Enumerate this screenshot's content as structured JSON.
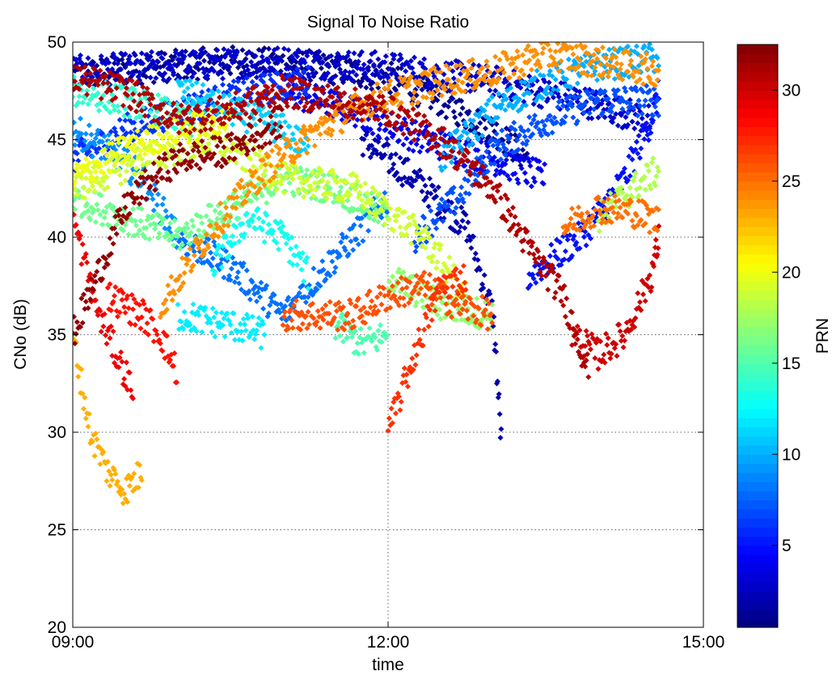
{
  "chart_data": {
    "type": "scatter",
    "title": "Signal To Noise Ratio",
    "xlabel": "time",
    "ylabel": "CNo (dB)",
    "xlim": [
      "09:00",
      "15:00"
    ],
    "ylim": [
      20,
      50
    ],
    "xticks": [
      "09:00",
      "12:00",
      "15:00"
    ],
    "yticks": [
      20,
      25,
      30,
      35,
      40,
      45,
      50
    ],
    "grid": true,
    "colorbar": {
      "label": "PRN",
      "range": [
        0.5,
        32.5
      ],
      "ticks": [
        5,
        10,
        15,
        20,
        25,
        30
      ],
      "colormap": "jet"
    },
    "series": [
      {
        "prn": 1,
        "points": [
          [
            "09:00",
            48.3
          ],
          [
            "09:45",
            48.7
          ],
          [
            "10:30",
            49.0
          ],
          [
            "11:15",
            48.8
          ],
          [
            "12:00",
            48.2
          ],
          [
            "12:30",
            47.0
          ],
          [
            "13:00",
            45.5
          ],
          [
            "13:20",
            44.0
          ]
        ]
      },
      {
        "prn": 2,
        "points": [
          [
            "11:45",
            45.0
          ],
          [
            "12:15",
            43.0
          ],
          [
            "12:45",
            40.5
          ],
          [
            "13:00",
            36.0
          ],
          [
            "13:05",
            29.0
          ]
        ]
      },
      {
        "prn": 3,
        "points": [
          [
            "09:00",
            48.5
          ],
          [
            "10:00",
            48.8
          ],
          [
            "11:00",
            49.0
          ],
          [
            "12:00",
            48.7
          ],
          [
            "13:00",
            48.0
          ],
          [
            "13:50",
            47.0
          ],
          [
            "14:30",
            46.0
          ]
        ]
      },
      {
        "prn": 4,
        "points": [
          [
            "11:00",
            47.5
          ],
          [
            "11:40",
            46.5
          ],
          [
            "12:20",
            45.0
          ],
          [
            "13:00",
            44.0
          ],
          [
            "13:30",
            43.0
          ]
        ]
      },
      {
        "prn": 5,
        "points": [
          [
            "13:20",
            38.0
          ],
          [
            "13:50",
            40.0
          ],
          [
            "14:15",
            43.0
          ],
          [
            "14:30",
            46.0
          ],
          [
            "14:35",
            47.5
          ]
        ]
      },
      {
        "prn": 6,
        "points": [
          [
            "09:00",
            44.0
          ],
          [
            "09:30",
            45.5
          ],
          [
            "10:00",
            46.5
          ],
          [
            "10:45",
            47.5
          ],
          [
            "11:15",
            48.0
          ]
        ]
      },
      {
        "prn": 7,
        "points": [
          [
            "12:15",
            40.0
          ],
          [
            "12:40",
            42.0
          ],
          [
            "13:00",
            44.5
          ],
          [
            "13:30",
            46.0
          ],
          [
            "14:00",
            47.0
          ],
          [
            "14:35",
            47.0
          ]
        ]
      },
      {
        "prn": 8,
        "points": [
          [
            "10:00",
            40.0
          ],
          [
            "10:30",
            38.5
          ],
          [
            "11:00",
            36.0
          ],
          [
            "11:30",
            39.0
          ],
          [
            "12:00",
            42.0
          ]
        ]
      },
      {
        "prn": 9,
        "points": [
          [
            "09:00",
            45.5
          ],
          [
            "09:20",
            44.5
          ],
          [
            "09:40",
            43.0
          ],
          [
            "10:00",
            40.0
          ]
        ]
      },
      {
        "prn": 10,
        "points": [
          [
            "12:30",
            44.0
          ],
          [
            "13:00",
            46.5
          ],
          [
            "13:30",
            48.0
          ],
          [
            "14:00",
            48.8
          ],
          [
            "14:35",
            49.2
          ]
        ]
      },
      {
        "prn": 11,
        "points": [
          [
            "10:00",
            47.5
          ],
          [
            "10:30",
            46.5
          ],
          [
            "11:00",
            45.5
          ],
          [
            "11:15",
            44.5
          ]
        ]
      },
      {
        "prn": 12,
        "points": [
          [
            "10:00",
            36.0
          ],
          [
            "10:30",
            35.5
          ],
          [
            "10:50",
            35.0
          ]
        ]
      },
      {
        "prn": 13,
        "points": [
          [
            "10:20",
            38.5
          ],
          [
            "10:40",
            41.0
          ],
          [
            "11:00",
            40.0
          ],
          [
            "11:15",
            38.0
          ]
        ]
      },
      {
        "prn": 14,
        "points": [
          [
            "09:00",
            47.5
          ],
          [
            "09:30",
            47.0
          ],
          [
            "09:50",
            46.5
          ],
          [
            "10:10",
            45.5
          ]
        ]
      },
      {
        "prn": 15,
        "points": [
          [
            "11:30",
            35.5
          ],
          [
            "11:45",
            34.5
          ],
          [
            "12:00",
            35.0
          ]
        ]
      },
      {
        "prn": 16,
        "points": [
          [
            "09:00",
            42.0
          ],
          [
            "09:30",
            41.0
          ],
          [
            "10:00",
            40.0
          ],
          [
            "10:30",
            41.5
          ],
          [
            "11:00",
            43.0
          ],
          [
            "11:30",
            42.5
          ],
          [
            "12:00",
            41.0
          ]
        ]
      },
      {
        "prn": 17,
        "points": [
          [
            "12:00",
            38.0
          ],
          [
            "12:30",
            36.5
          ],
          [
            "13:00",
            36.0
          ]
        ]
      },
      {
        "prn": 18,
        "points": [
          [
            "14:00",
            41.0
          ],
          [
            "14:20",
            42.5
          ],
          [
            "14:35",
            43.5
          ]
        ]
      },
      {
        "prn": 19,
        "points": [
          [
            "09:00",
            42.5
          ],
          [
            "09:40",
            44.0
          ],
          [
            "10:20",
            45.0
          ],
          [
            "11:00",
            43.0
          ],
          [
            "11:40",
            42.5
          ],
          [
            "12:20",
            40.0
          ],
          [
            "12:45",
            37.0
          ]
        ]
      },
      {
        "prn": 20,
        "points": [
          [
            "09:00",
            43.0
          ],
          [
            "09:30",
            44.5
          ],
          [
            "10:00",
            45.5
          ],
          [
            "10:30",
            46.0
          ]
        ]
      },
      {
        "prn": 23,
        "points": [
          [
            "09:00",
            35.0
          ],
          [
            "09:10",
            30.0
          ],
          [
            "09:20",
            28.0
          ],
          [
            "09:30",
            27.0
          ],
          [
            "09:40",
            28.0
          ]
        ]
      },
      {
        "prn": 24,
        "points": [
          [
            "09:50",
            36.5
          ],
          [
            "10:20",
            40.5
          ],
          [
            "10:50",
            43.5
          ],
          [
            "11:20",
            45.5
          ],
          [
            "11:50",
            47.0
          ],
          [
            "12:30",
            48.0
          ],
          [
            "13:00",
            48.5
          ],
          [
            "13:30",
            49.4
          ],
          [
            "14:00",
            49.0
          ],
          [
            "14:35",
            48.5
          ]
        ]
      },
      {
        "prn": 25,
        "points": [
          [
            "13:40",
            40.5
          ],
          [
            "14:00",
            41.5
          ],
          [
            "14:20",
            41.3
          ],
          [
            "14:35",
            40.8
          ]
        ]
      },
      {
        "prn": 26,
        "points": [
          [
            "11:00",
            36.0
          ],
          [
            "11:20",
            36.0
          ],
          [
            "11:40",
            36.0
          ],
          [
            "12:00",
            37.0
          ],
          [
            "12:20",
            37.5
          ],
          [
            "12:40",
            36.5
          ],
          [
            "13:00",
            36.0
          ]
        ]
      },
      {
        "prn": 27,
        "points": [
          [
            "12:00",
            30.0
          ],
          [
            "12:15",
            34.0
          ],
          [
            "12:30",
            37.5
          ],
          [
            "12:45",
            38.0
          ]
        ]
      },
      {
        "prn": 28,
        "points": [
          [
            "09:20",
            37.0
          ],
          [
            "09:40",
            36.0
          ],
          [
            "09:50",
            35.0
          ],
          [
            "10:00",
            33.0
          ]
        ]
      },
      {
        "prn": 29,
        "points": [
          [
            "09:00",
            41.0
          ],
          [
            "09:15",
            36.0
          ],
          [
            "09:25",
            34.0
          ],
          [
            "09:35",
            32.0
          ]
        ]
      },
      {
        "prn": 30,
        "points": [
          [
            "13:45",
            35.0
          ],
          [
            "14:00",
            34.0
          ],
          [
            "14:15",
            35.0
          ],
          [
            "14:30",
            38.0
          ],
          [
            "14:35",
            40.0
          ]
        ]
      },
      {
        "prn": 31,
        "points": [
          [
            "09:00",
            48.2
          ],
          [
            "09:30",
            47.5
          ],
          [
            "10:00",
            46.0
          ],
          [
            "10:30",
            46.5
          ],
          [
            "11:00",
            47.5
          ],
          [
            "11:30",
            47.0
          ],
          [
            "12:00",
            46.5
          ],
          [
            "12:30",
            45.0
          ],
          [
            "13:00",
            42.5
          ],
          [
            "13:20",
            39.5
          ],
          [
            "13:40",
            37.0
          ],
          [
            "13:55",
            33.0
          ]
        ]
      },
      {
        "prn": 32,
        "points": [
          [
            "09:00",
            35.0
          ],
          [
            "09:30",
            41.5
          ],
          [
            "09:45",
            43.0
          ],
          [
            "10:00",
            44.0
          ],
          [
            "10:30",
            44.5
          ],
          [
            "11:00",
            46.0
          ]
        ]
      }
    ]
  }
}
